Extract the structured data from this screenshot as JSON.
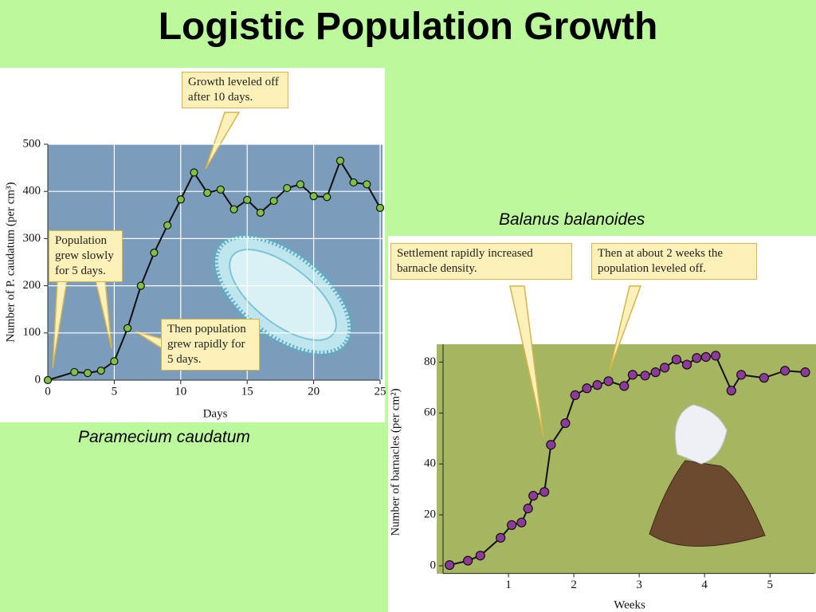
{
  "title": "Logistic Population Growth",
  "chart_data": [
    {
      "type": "line",
      "title": "Paramecium caudatum",
      "x_label": "Days",
      "y_label": "Number of P. caudatum (per cm³)",
      "annotations": [
        "Growth leveled off after 10 days.",
        "Population grew slowly for 5 days.",
        "Then population grew rapidly for 5 days."
      ],
      "xlim": [
        0,
        25
      ],
      "xticks": [
        0,
        5,
        10,
        15,
        20,
        25
      ],
      "ylim": [
        0,
        500
      ],
      "yticks": [
        0,
        100,
        200,
        300,
        400,
        500
      ],
      "grid": true,
      "series": [
        {
          "name": "P. caudatum",
          "color": "#7dc242",
          "x": [
            0,
            2,
            3,
            4,
            5,
            6,
            7,
            8,
            9,
            10,
            11,
            12,
            13,
            14,
            15,
            16,
            17,
            18,
            19,
            20,
            21,
            22,
            23,
            24,
            25
          ],
          "values": [
            0,
            17,
            15,
            20,
            40,
            110,
            200,
            270,
            328,
            383,
            440,
            397,
            404,
            362,
            382,
            355,
            380,
            407,
            415,
            390,
            388,
            465,
            419,
            415,
            365
          ]
        }
      ]
    },
    {
      "type": "line",
      "title": "Balanus balanoides",
      "x_label": "Weeks",
      "y_label": "Number of barnacles (per cm²)",
      "annotations": [
        "Settlement rapidly increased barnacle density.",
        "Then at about 2 weeks the population leveled off."
      ],
      "xlim": [
        0,
        5.68
      ],
      "xticks": [
        1,
        2,
        3,
        4,
        5
      ],
      "ylim": [
        -3,
        87
      ],
      "yticks": [
        0,
        20,
        40,
        60,
        80
      ],
      "grid": false,
      "series": [
        {
          "name": "Barnacles",
          "color": "#8e3a9b",
          "x": [
            0.1,
            0.38,
            0.57,
            0.88,
            1.05,
            1.2,
            1.3,
            1.38,
            1.55,
            1.65,
            1.87,
            2.02,
            2.2,
            2.36,
            2.53,
            2.77,
            2.9,
            3.09,
            3.25,
            3.39,
            3.57,
            3.73,
            3.88,
            4.02,
            4.17,
            4.41,
            4.56,
            4.91,
            5.23,
            5.54
          ],
          "values": [
            0.3,
            2,
            4,
            11,
            16,
            17,
            22.5,
            27.5,
            29,
            47.5,
            56,
            67,
            69.7,
            71,
            72.5,
            70.6,
            75,
            74.7,
            76,
            77.8,
            81,
            79,
            81.6,
            82,
            82.5,
            68.8,
            75,
            73.8,
            76.6,
            76
          ]
        }
      ]
    }
  ]
}
